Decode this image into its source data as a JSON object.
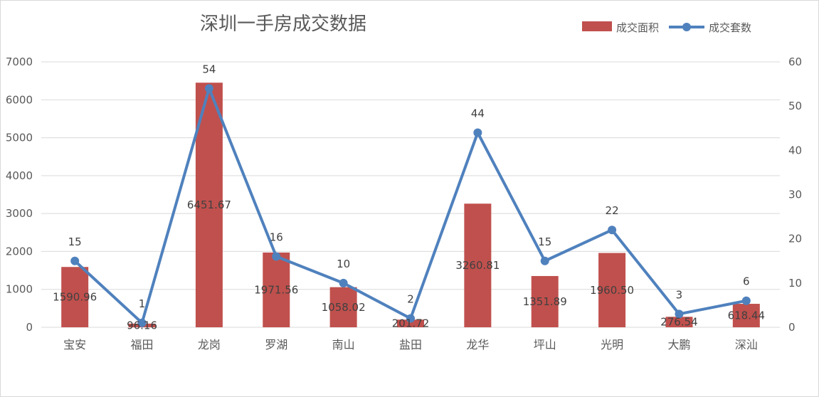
{
  "chart_data": {
    "type": "bar+line",
    "title": "深圳一手房成交数据",
    "categories": [
      "宝安",
      "福田",
      "龙岗",
      "罗湖",
      "南山",
      "盐田",
      "龙华",
      "坪山",
      "光明",
      "大鹏",
      "深汕"
    ],
    "series": [
      {
        "name": "成交面积",
        "type": "bar",
        "axis": "left",
        "color": "#c0504d",
        "values": [
          1590.96,
          96.16,
          6451.67,
          1971.56,
          1058.02,
          201.72,
          3260.81,
          1351.89,
          1960.5,
          276.54,
          618.44
        ],
        "labels": [
          "1590.96",
          "96.16",
          "6451.67",
          "1971.56",
          "1058.02",
          "201.72",
          "3260.81",
          "1351.89",
          "1960.50",
          "276.54",
          "618.44"
        ]
      },
      {
        "name": "成交套数",
        "type": "line",
        "axis": "right",
        "color": "#4f81bd",
        "values": [
          15,
          1,
          54,
          16,
          10,
          2,
          44,
          15,
          22,
          3,
          6
        ],
        "labels": [
          "15",
          "1",
          "54",
          "16",
          "10",
          "2",
          "44",
          "15",
          "22",
          "3",
          "6"
        ]
      }
    ],
    "y_left": {
      "min": 0,
      "max": 7000,
      "ticks": [
        "0",
        "1000",
        "2000",
        "3000",
        "4000",
        "5000",
        "6000",
        "7000"
      ]
    },
    "y_right": {
      "min": 0,
      "max": 60,
      "ticks": [
        "0",
        "10",
        "20",
        "30",
        "40",
        "50",
        "60"
      ]
    },
    "grid": true,
    "legend": "top-right"
  }
}
